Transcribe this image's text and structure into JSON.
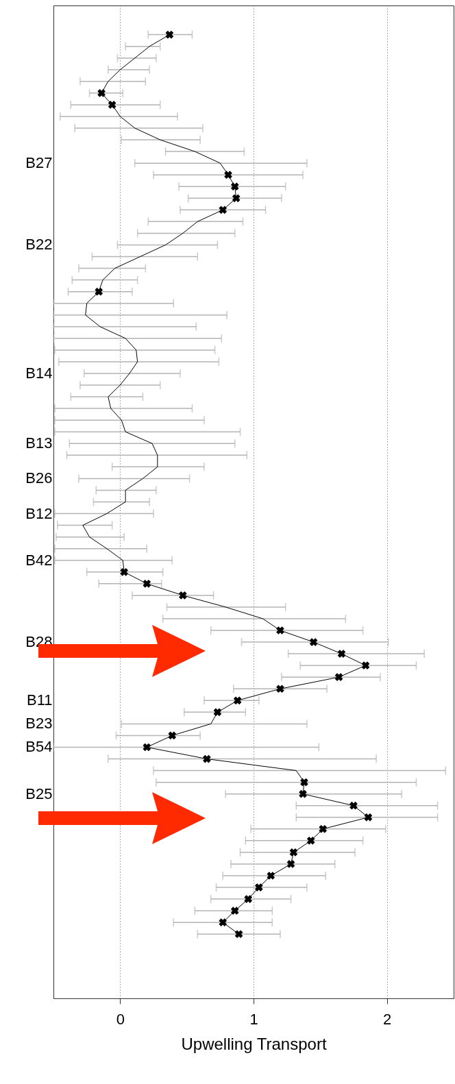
{
  "chart_data": {
    "type": "line",
    "orientation": "horizontal",
    "xlabel": "Upwelling Transport",
    "xlim": [
      -0.5,
      2.5
    ],
    "xticks": [
      0,
      1,
      2
    ],
    "grid": "x",
    "categories": [
      null,
      null,
      null,
      null,
      null,
      null,
      null,
      null,
      null,
      null,
      null,
      null,
      null,
      "B27",
      null,
      null,
      null,
      null,
      null,
      null,
      "B22",
      null,
      null,
      null,
      null,
      null,
      null,
      null,
      null,
      null,
      null,
      "B14",
      null,
      null,
      null,
      null,
      null,
      "B13",
      null,
      null,
      "B26",
      null,
      null,
      "B12",
      null,
      null,
      null,
      "B42",
      null,
      null,
      null,
      null,
      null,
      null,
      "B28",
      null,
      null,
      null,
      null,
      "B11",
      null,
      "B23",
      null,
      "B54",
      null,
      null,
      null,
      "B25",
      null,
      null,
      null,
      null,
      null,
      null,
      null,
      null,
      null,
      null,
      null,
      null,
      null,
      null,
      null,
      null,
      null
    ],
    "series": [
      {
        "color": "#000000",
        "line_style": "solid",
        "values": [
          null,
          null,
          0.37,
          0.22,
          0.11,
          0.0,
          -0.09,
          -0.14,
          -0.06,
          0.0,
          0.11,
          0.3,
          0.56,
          0.75,
          0.81,
          0.86,
          0.87,
          0.77,
          0.58,
          0.47,
          0.34,
          0.15,
          -0.04,
          -0.13,
          -0.16,
          -0.25,
          -0.26,
          -0.15,
          0.04,
          0.12,
          0.13,
          0.07,
          0.0,
          -0.09,
          -0.07,
          0.01,
          0.04,
          0.24,
          0.28,
          0.28,
          0.17,
          0.04,
          0.04,
          -0.1,
          -0.28,
          -0.23,
          -0.1,
          0.02,
          0.03,
          0.2,
          0.47,
          0.79,
          1.07,
          1.2,
          1.45,
          1.66,
          1.84,
          1.64,
          1.2,
          0.88,
          0.73,
          0.68,
          0.39,
          0.2,
          0.65,
          1.32,
          1.38,
          1.37,
          1.75,
          1.86,
          1.52,
          1.43,
          1.3,
          1.28,
          1.13,
          1.04,
          0.96,
          0.86,
          0.77,
          0.89,
          null,
          null,
          null,
          null,
          null
        ],
        "errors": [
          null,
          null,
          [
            0.21,
            0.54
          ],
          [
            0.04,
            0.3
          ],
          [
            -0.02,
            0.27
          ],
          [
            -0.09,
            0.22
          ],
          [
            -0.3,
            0.19
          ],
          [
            -0.23,
            0.02
          ],
          [
            -0.37,
            0.3
          ],
          [
            -0.45,
            0.43
          ],
          [
            -0.34,
            0.62
          ],
          [
            0.01,
            0.6
          ],
          [
            0.34,
            0.93
          ],
          [
            0.11,
            1.4
          ],
          [
            0.25,
            1.37
          ],
          [
            0.44,
            1.24
          ],
          [
            0.51,
            1.21
          ],
          [
            0.45,
            1.09
          ],
          [
            0.21,
            0.92
          ],
          [
            0.13,
            0.86
          ],
          [
            -0.02,
            0.73
          ],
          [
            -0.21,
            0.58
          ],
          [
            -0.31,
            0.19
          ],
          [
            -0.36,
            0.13
          ],
          [
            -0.39,
            0.09
          ],
          [
            -0.5,
            0.4
          ],
          [
            -0.5,
            0.8
          ],
          [
            -0.5,
            0.57
          ],
          [
            -0.5,
            0.76
          ],
          [
            -0.49,
            0.71
          ],
          [
            -0.46,
            0.74
          ],
          [
            -0.27,
            0.45
          ],
          [
            -0.3,
            0.3
          ],
          [
            -0.37,
            0.17
          ],
          [
            -0.49,
            0.54
          ],
          [
            -0.49,
            0.63
          ],
          [
            -0.49,
            0.9
          ],
          [
            -0.38,
            0.86
          ],
          [
            -0.4,
            0.95
          ],
          [
            -0.06,
            0.63
          ],
          [
            -0.31,
            0.52
          ],
          [
            -0.18,
            0.27
          ],
          [
            -0.2,
            0.22
          ],
          [
            -0.49,
            0.25
          ],
          [
            -0.47,
            -0.06
          ],
          [
            -0.48,
            0.03
          ],
          [
            -0.49,
            0.2
          ],
          [
            -0.49,
            0.39
          ],
          [
            -0.25,
            0.32
          ],
          [
            -0.16,
            0.31
          ],
          [
            0.09,
            0.7
          ],
          [
            0.35,
            1.24
          ],
          [
            0.32,
            1.69
          ],
          [
            0.68,
            1.82
          ],
          [
            0.91,
            2.01
          ],
          [
            1.26,
            2.28
          ],
          [
            1.35,
            2.22
          ],
          [
            1.21,
            1.95
          ],
          [
            0.85,
            1.55
          ],
          [
            0.63,
            1.04
          ],
          [
            0.48,
            0.94
          ],
          [
            0.01,
            1.4
          ],
          [
            -0.03,
            0.6
          ],
          [
            -0.5,
            1.49
          ],
          [
            -0.09,
            1.92
          ],
          [
            0.25,
            2.44
          ],
          [
            0.27,
            2.22
          ],
          [
            0.79,
            2.11
          ],
          [
            1.32,
            2.38
          ],
          [
            1.32,
            2.38
          ],
          [
            0.98,
            1.99
          ],
          [
            0.94,
            1.82
          ],
          [
            0.9,
            1.76
          ],
          [
            0.83,
            1.61
          ],
          [
            0.77,
            1.54
          ],
          [
            0.72,
            1.4
          ],
          [
            0.68,
            1.28
          ],
          [
            0.56,
            1.14
          ],
          [
            0.4,
            1.14
          ],
          [
            0.58,
            1.2
          ],
          null,
          null,
          null,
          null,
          null
        ]
      },
      {
        "type": "scatter",
        "marker": "cross",
        "color": "#000000",
        "values": [
          null,
          null,
          0.37,
          null,
          null,
          null,
          null,
          -0.14,
          -0.06,
          null,
          null,
          null,
          null,
          null,
          0.81,
          0.86,
          0.87,
          0.77,
          null,
          null,
          null,
          null,
          null,
          null,
          -0.16,
          null,
          null,
          null,
          null,
          null,
          null,
          null,
          null,
          null,
          null,
          null,
          null,
          null,
          null,
          null,
          null,
          null,
          null,
          null,
          null,
          null,
          null,
          null,
          0.03,
          0.2,
          0.47,
          null,
          null,
          1.2,
          1.45,
          1.66,
          1.84,
          1.64,
          1.2,
          0.88,
          0.73,
          null,
          0.39,
          0.2,
          0.65,
          null,
          1.38,
          1.37,
          1.75,
          1.86,
          1.52,
          1.43,
          1.3,
          1.28,
          1.13,
          1.04,
          0.96,
          0.86,
          0.77,
          0.89,
          null,
          null,
          null,
          null,
          null
        ]
      }
    ]
  }
}
